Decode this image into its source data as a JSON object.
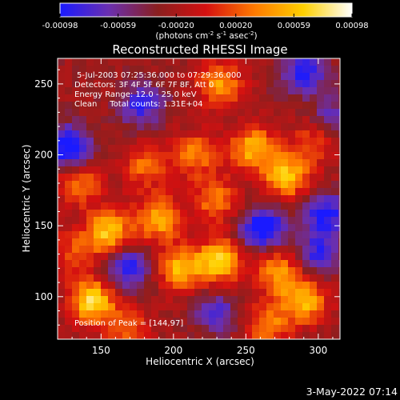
{
  "chart_data": {
    "type": "heatmap",
    "title": "Reconstructed RHESSI Image",
    "xlabel": "Heliocentric X (arcsec)",
    "ylabel": "Heliocentric Y (arcsec)",
    "xlim": [
      120,
      315
    ],
    "ylim": [
      70,
      268
    ],
    "x_ticks": [
      150,
      200,
      250,
      300
    ],
    "y_ticks": [
      100,
      150,
      200,
      250
    ],
    "colorbar": {
      "ticks": [
        "-0.00098",
        "-0.00059",
        "-0.00020",
        "0.00020",
        "0.00059",
        "0.00098"
      ],
      "tick_values": [
        -0.00098,
        -0.00059,
        -0.0002,
        0.0002,
        0.00059,
        0.00098
      ],
      "range": [
        -0.00098,
        0.00098
      ],
      "unit_base": "(photons cm",
      "unit_exp1": "-2",
      "unit_mid1": " s",
      "unit_exp2": "-1",
      "unit_mid2": " asec",
      "unit_exp3": "-2",
      "unit_end": ")",
      "colors": [
        "#1a1aff",
        "#6a2fb0",
        "#8a1f1f",
        "#d41010",
        "#ff7a00",
        "#ffd000",
        "#ffffff"
      ]
    },
    "annotations": [
      "5-Jul-2003 07:25:36.000 to 07:29:36.000",
      "Detectors: 3F 4F 5F 6F 7F 8F, Att 0",
      "Energy Range: 12.0 - 25.0 keV",
      "Clean     Total counts: 1.31E+04"
    ],
    "peak_label": "Position of Peak = [144,97]",
    "hotspots": [
      {
        "x": 232,
        "y": 250,
        "v": 0.0007
      },
      {
        "x": 255,
        "y": 205,
        "v": 0.0008
      },
      {
        "x": 215,
        "y": 200,
        "v": 0.0006
      },
      {
        "x": 180,
        "y": 192,
        "v": 0.0005
      },
      {
        "x": 135,
        "y": 180,
        "v": 0.0006
      },
      {
        "x": 155,
        "y": 145,
        "v": 0.0009
      },
      {
        "x": 190,
        "y": 155,
        "v": 0.0008
      },
      {
        "x": 230,
        "y": 168,
        "v": 0.0006
      },
      {
        "x": 278,
        "y": 185,
        "v": 0.0009
      },
      {
        "x": 298,
        "y": 210,
        "v": 0.0005
      },
      {
        "x": 205,
        "y": 120,
        "v": 0.0008
      },
      {
        "x": 232,
        "y": 125,
        "v": 0.0009
      },
      {
        "x": 272,
        "y": 118,
        "v": 0.0007
      },
      {
        "x": 290,
        "y": 97,
        "v": 0.0008
      },
      {
        "x": 144,
        "y": 97,
        "v": 0.00098
      },
      {
        "x": 265,
        "y": 80,
        "v": 0.0006
      },
      {
        "x": 168,
        "y": 78,
        "v": 0.0005
      },
      {
        "x": 130,
        "y": 132,
        "v": 0.0004
      }
    ],
    "coldspots": [
      {
        "x": 128,
        "y": 205,
        "v": -0.0009
      },
      {
        "x": 178,
        "y": 235,
        "v": -0.0006
      },
      {
        "x": 290,
        "y": 258,
        "v": -0.0007
      },
      {
        "x": 305,
        "y": 158,
        "v": -0.0007
      },
      {
        "x": 300,
        "y": 130,
        "v": -0.0006
      },
      {
        "x": 262,
        "y": 148,
        "v": -0.0009
      },
      {
        "x": 168,
        "y": 120,
        "v": -0.0007
      },
      {
        "x": 230,
        "y": 88,
        "v": -0.0005
      },
      {
        "x": 310,
        "y": 225,
        "v": -0.0005
      }
    ]
  },
  "footer": {
    "timestamp": "3-May-2022 07:14"
  }
}
